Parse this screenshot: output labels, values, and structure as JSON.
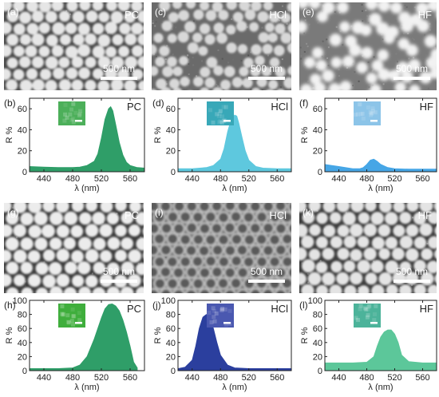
{
  "colors": {
    "green": "#2f9e68",
    "cyan": "#5ec8de",
    "blue": "#46a6e6",
    "darkblue": "#2b3f9e",
    "mint": "#5cc79a"
  },
  "scale_bar_text": "500 nm",
  "sem_panels": [
    {
      "letter": "(a)",
      "condition": "PC"
    },
    {
      "letter": "(c)",
      "condition": "HCl"
    },
    {
      "letter": "(e)",
      "condition": "HF"
    },
    {
      "letter": "(g)",
      "condition": "PC"
    },
    {
      "letter": "(i)",
      "condition": "HCl"
    },
    {
      "letter": "(k)",
      "condition": "HF"
    }
  ],
  "chart_data": [
    {
      "type": "area",
      "panel": "(b)",
      "condition": "PC",
      "color": "#2f9e68",
      "inset_color": "#4caf5a",
      "xlabel": "λ (nm)",
      "ylabel": "R %",
      "xlim": [
        420,
        580
      ],
      "ylim": [
        0,
        70
      ],
      "xticks": [
        440,
        480,
        520,
        560
      ],
      "yticks": [
        0,
        20,
        40,
        60
      ],
      "x": [
        420,
        440,
        460,
        480,
        490,
        500,
        510,
        515,
        520,
        525,
        530,
        533,
        536,
        540,
        545,
        550,
        555,
        560,
        570,
        580
      ],
      "y": [
        5,
        4.5,
        4,
        4,
        4.5,
        6,
        10,
        17,
        32,
        50,
        60,
        62,
        58,
        45,
        28,
        16,
        9,
        6,
        4,
        3.5
      ]
    },
    {
      "type": "area",
      "panel": "(d)",
      "condition": "HCl",
      "color": "#5ec8de",
      "inset_color": "#38a8b8",
      "xlabel": "λ (nm)",
      "ylabel": "R %",
      "xlim": [
        420,
        580
      ],
      "ylim": [
        0,
        70
      ],
      "xticks": [
        440,
        480,
        520,
        560
      ],
      "yticks": [
        0,
        20,
        40,
        60
      ],
      "x": [
        420,
        440,
        460,
        470,
        480,
        485,
        490,
        495,
        500,
        503,
        506,
        510,
        515,
        520,
        530,
        540,
        560,
        580
      ],
      "y": [
        3,
        3,
        4,
        6,
        12,
        22,
        38,
        50,
        54,
        53,
        46,
        34,
        20,
        11,
        5,
        3.5,
        3,
        3
      ]
    },
    {
      "type": "area",
      "panel": "(f)",
      "condition": "HF",
      "color": "#46a6e6",
      "inset_color": "#8cc4e8",
      "xlabel": "λ (nm)",
      "ylabel": "R %",
      "xlim": [
        420,
        580
      ],
      "ylim": [
        0,
        70
      ],
      "xticks": [
        440,
        480,
        520,
        560
      ],
      "yticks": [
        0,
        20,
        40,
        60
      ],
      "x": [
        420,
        430,
        440,
        460,
        470,
        475,
        480,
        485,
        490,
        495,
        500,
        510,
        520,
        540,
        560,
        580
      ],
      "y": [
        7,
        6,
        5,
        3,
        3,
        4,
        7,
        11,
        12,
        10,
        7,
        4,
        3,
        2.5,
        2.5,
        2.5
      ]
    },
    {
      "type": "area",
      "panel": "(h)",
      "condition": "PC",
      "color": "#2f9e68",
      "inset_color": "#3fae3c",
      "xlabel": "λ (nm)",
      "ylabel": "R %",
      "xlim": [
        420,
        580
      ],
      "ylim": [
        0,
        100
      ],
      "xticks": [
        440,
        480,
        520,
        560
      ],
      "yticks": [
        0,
        20,
        40,
        60,
        80,
        100
      ],
      "x": [
        420,
        440,
        460,
        480,
        490,
        500,
        510,
        520,
        525,
        530,
        535,
        540,
        545,
        550,
        555,
        560,
        565,
        570
      ],
      "y": [
        3,
        3,
        3,
        4,
        8,
        20,
        45,
        75,
        88,
        94,
        95,
        92,
        85,
        72,
        55,
        35,
        12,
        4
      ]
    },
    {
      "type": "area",
      "panel": "(j)",
      "condition": "HCl",
      "color": "#2b3f9e",
      "inset_color": "#4a58b0",
      "xlabel": "λ (nm)",
      "ylabel": "R %",
      "xlim": [
        420,
        580
      ],
      "ylim": [
        0,
        100
      ],
      "xticks": [
        440,
        480,
        520,
        560
      ],
      "yticks": [
        0,
        20,
        40,
        60,
        80,
        100
      ],
      "x": [
        420,
        430,
        440,
        445,
        450,
        455,
        460,
        465,
        470,
        475,
        480,
        490,
        500,
        520,
        540,
        560,
        580
      ],
      "y": [
        3,
        5,
        15,
        35,
        60,
        76,
        80,
        75,
        60,
        40,
        22,
        8,
        4,
        3,
        3,
        3,
        3
      ]
    },
    {
      "type": "area",
      "panel": "(l)",
      "condition": "HF",
      "color": "#5cc79a",
      "inset_color": "#4cb39a",
      "xlabel": "λ (nm)",
      "ylabel": "R %",
      "xlim": [
        420,
        580
      ],
      "ylim": [
        0,
        100
      ],
      "xticks": [
        440,
        480,
        520,
        560
      ],
      "yticks": [
        0,
        20,
        40,
        60,
        80,
        100
      ],
      "x": [
        420,
        440,
        460,
        480,
        490,
        495,
        500,
        505,
        510,
        515,
        520,
        525,
        530,
        540,
        560,
        580
      ],
      "y": [
        11,
        11,
        11,
        12,
        20,
        35,
        48,
        55,
        58,
        58,
        52,
        40,
        22,
        13,
        11,
        11
      ]
    }
  ]
}
